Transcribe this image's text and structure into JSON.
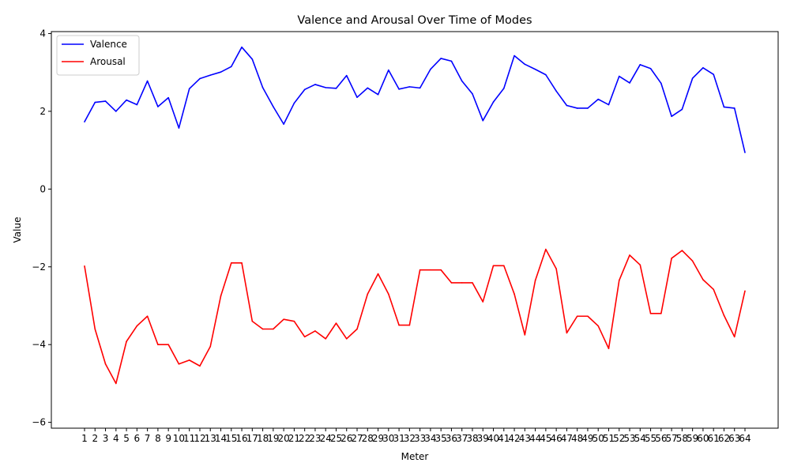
{
  "chart_data": {
    "type": "line",
    "title": "Valence and Arousal Over Time of Modes",
    "xlabel": "Meter",
    "ylabel": "Value",
    "ylim": [
      -6.15,
      4.05
    ],
    "yticks": [
      -6,
      -4,
      -2,
      0,
      2,
      4
    ],
    "ytick_labels": [
      "−6",
      "−4",
      "−2",
      "0",
      "2",
      "4"
    ],
    "categories": [
      "1",
      "2",
      "3",
      "4",
      "5",
      "6",
      "7",
      "8",
      "9",
      "10",
      "11",
      "12",
      "13",
      "14",
      "15",
      "16",
      "17",
      "18",
      "19",
      "20",
      "21",
      "22",
      "23",
      "24",
      "25",
      "26",
      "27",
      "28",
      "29",
      "30",
      "31",
      "32",
      "33",
      "34",
      "35",
      "36",
      "37",
      "38",
      "39",
      "40",
      "41",
      "42",
      "43",
      "44",
      "45",
      "46",
      "47",
      "48",
      "49",
      "50",
      "51",
      "52",
      "53",
      "54",
      "55",
      "56",
      "57",
      "58",
      "59",
      "60",
      "61",
      "62",
      "63",
      "64"
    ],
    "grid": false,
    "legend_position": "upper-left",
    "series": [
      {
        "name": "Valence",
        "color": "#0000ff",
        "values": [
          1.73,
          2.23,
          2.26,
          2.0,
          2.29,
          2.17,
          2.78,
          2.12,
          2.35,
          1.57,
          2.58,
          2.84,
          2.93,
          3.01,
          3.15,
          3.65,
          3.34,
          2.61,
          2.12,
          1.67,
          2.21,
          2.56,
          2.69,
          2.61,
          2.59,
          2.92,
          2.36,
          2.6,
          2.43,
          3.06,
          2.57,
          2.63,
          2.6,
          3.08,
          3.36,
          3.29,
          2.78,
          2.45,
          1.76,
          2.24,
          2.59,
          3.43,
          3.21,
          3.08,
          2.94,
          2.52,
          2.15,
          2.08,
          2.08,
          2.31,
          2.17,
          2.9,
          2.73,
          3.2,
          3.1,
          2.72,
          1.87,
          2.05,
          2.85,
          3.12,
          2.95,
          2.11,
          2.08,
          0.94
        ]
      },
      {
        "name": "Arousal",
        "color": "#ff0000",
        "values": [
          -1.98,
          -3.6,
          -4.5,
          -5.0,
          -3.92,
          -3.52,
          -3.27,
          -4.0,
          -4.0,
          -4.5,
          -4.4,
          -4.55,
          -4.05,
          -2.75,
          -1.9,
          -1.9,
          -3.4,
          -3.6,
          -3.6,
          -3.35,
          -3.4,
          -3.8,
          -3.65,
          -3.85,
          -3.45,
          -3.85,
          -3.6,
          -2.7,
          -2.18,
          -2.7,
          -3.5,
          -3.5,
          -2.08,
          -2.08,
          -2.08,
          -2.41,
          -2.41,
          -2.41,
          -2.9,
          -1.97,
          -1.97,
          -2.7,
          -3.75,
          -2.35,
          -1.55,
          -2.05,
          -3.7,
          -3.27,
          -3.27,
          -3.52,
          -4.1,
          -2.35,
          -1.7,
          -1.95,
          -3.2,
          -3.2,
          -1.78,
          -1.58,
          -1.85,
          -2.33,
          -2.58,
          -3.25,
          -3.8,
          -2.62
        ]
      }
    ]
  }
}
